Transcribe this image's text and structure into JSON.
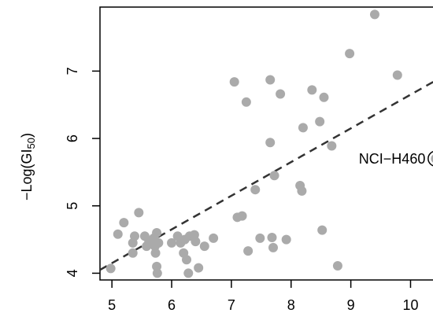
{
  "chart_data": {
    "type": "scatter",
    "title": "",
    "xlabel": "",
    "ylabel": "−Log(GI",
    "ylabel_sub": "50",
    "ylabel_close": ")",
    "xlim": [
      4.8,
      10.6
    ],
    "ylim": [
      3.9,
      7.95
    ],
    "xticks": [
      5,
      6,
      7,
      8,
      9,
      10
    ],
    "yticks": [
      4,
      5,
      6,
      7
    ],
    "grid": false,
    "point_color": "#aaaaaa",
    "line_color": "#333333",
    "points": [
      [
        4.98,
        4.07
      ],
      [
        5.1,
        4.58
      ],
      [
        5.2,
        4.75
      ],
      [
        5.35,
        4.3
      ],
      [
        5.35,
        4.45
      ],
      [
        5.38,
        4.55
      ],
      [
        5.45,
        4.9
      ],
      [
        5.55,
        4.55
      ],
      [
        5.58,
        4.4
      ],
      [
        5.62,
        4.47
      ],
      [
        5.65,
        4.45
      ],
      [
        5.7,
        4.52
      ],
      [
        5.72,
        4.4
      ],
      [
        5.73,
        4.3
      ],
      [
        5.75,
        4.6
      ],
      [
        5.75,
        4.1
      ],
      [
        5.76,
        4.0
      ],
      [
        5.78,
        4.45
      ],
      [
        6.0,
        4.45
      ],
      [
        6.1,
        4.55
      ],
      [
        6.15,
        4.45
      ],
      [
        6.2,
        4.3
      ],
      [
        6.22,
        4.5
      ],
      [
        6.25,
        4.2
      ],
      [
        6.28,
        4.0
      ],
      [
        6.3,
        4.55
      ],
      [
        6.38,
        4.57
      ],
      [
        6.4,
        4.47
      ],
      [
        6.45,
        4.08
      ],
      [
        6.55,
        4.4
      ],
      [
        6.7,
        4.52
      ],
      [
        7.05,
        6.84
      ],
      [
        7.1,
        4.83
      ],
      [
        7.18,
        4.85
      ],
      [
        7.25,
        6.54
      ],
      [
        7.28,
        4.33
      ],
      [
        7.4,
        5.24
      ],
      [
        7.48,
        4.52
      ],
      [
        7.65,
        6.87
      ],
      [
        7.65,
        5.94
      ],
      [
        7.68,
        4.53
      ],
      [
        7.7,
        4.38
      ],
      [
        7.72,
        5.45
      ],
      [
        7.82,
        6.66
      ],
      [
        7.92,
        4.5
      ],
      [
        8.15,
        5.3
      ],
      [
        8.18,
        5.22
      ],
      [
        8.2,
        6.16
      ],
      [
        8.35,
        6.72
      ],
      [
        8.48,
        6.25
      ],
      [
        8.52,
        4.64
      ],
      [
        8.55,
        6.61
      ],
      [
        8.68,
        5.89
      ],
      [
        8.78,
        4.11
      ],
      [
        8.98,
        7.26
      ],
      [
        9.4,
        7.84
      ],
      [
        9.78,
        6.94
      ]
    ],
    "highlight": {
      "x": 10.42,
      "y": 5.7,
      "label": "NCI−H460"
    },
    "trend_line": {
      "slope": 0.5,
      "intercept": 1.65
    }
  }
}
